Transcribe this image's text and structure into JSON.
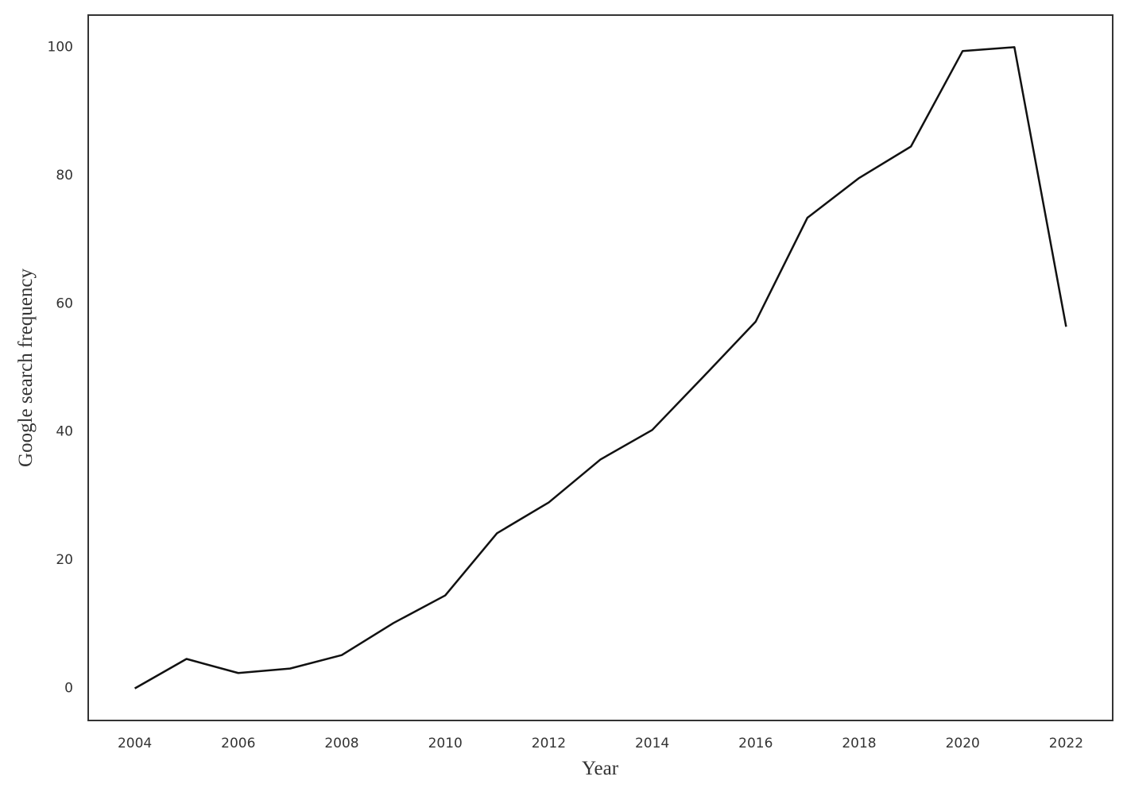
{
  "chart_data": {
    "type": "line",
    "x": [
      2004,
      2005,
      2006,
      2007,
      2008,
      2009,
      2010,
      2011,
      2012,
      2013,
      2014,
      2015,
      2016,
      2017,
      2018,
      2019,
      2020,
      2021,
      2022
    ],
    "values": [
      0,
      4.6,
      2.4,
      3.1,
      5.2,
      10.2,
      14.5,
      24.2,
      29.0,
      35.7,
      40.3,
      48.7,
      57.2,
      73.4,
      79.6,
      84.5,
      99.4,
      100,
      56.4
    ],
    "color": "#111111",
    "xlabel": "Year",
    "ylabel": "Google search frequency",
    "xlim": [
      2003.1,
      2022.9
    ],
    "ylim": [
      -5,
      105
    ],
    "xticks": [
      2004,
      2006,
      2008,
      2010,
      2012,
      2014,
      2016,
      2018,
      2020,
      2022
    ],
    "yticks": [
      0,
      20,
      40,
      60,
      80,
      100
    ],
    "grid": false
  }
}
